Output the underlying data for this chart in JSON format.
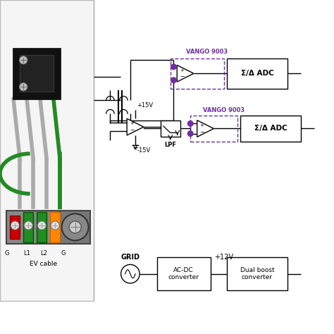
{
  "bg_color": "#ffffff",
  "purple_color": "#7030A0",
  "black": "#000000",
  "dark_gray": "#333333",
  "med_gray": "#666666",
  "light_gray": "#aaaaaa",
  "vango_label": "VANGO 9003",
  "adc_label": "Σ/Δ ADC",
  "lpf_label": "LPF",
  "grid_label": "GRID",
  "ac_dc_label": "AC-DC\nconverter",
  "dual_boost_label": "Dual boost\nconverter",
  "plus15v": "+15V",
  "minus15v": "-15V",
  "plus12v": "+12V",
  "ev_cable_label": "EV cable",
  "g_label": "G",
  "l1_label": "L1",
  "l2_label": "L2",
  "g2_label": "G"
}
